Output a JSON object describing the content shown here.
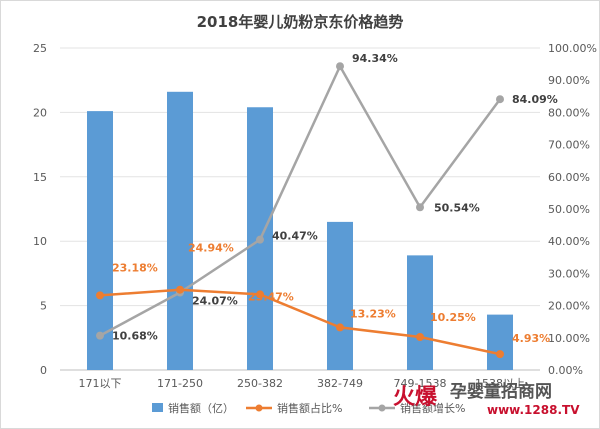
{
  "chart_data": {
    "type": "bar",
    "title": "2018年婴儿奶粉京东价格趋势",
    "categories": [
      "171以下",
      "171-250",
      "250-382",
      "382-749",
      "749-1538",
      "1538以上"
    ],
    "series": [
      {
        "name": "销售额（亿）",
        "type": "bar",
        "axis": "left",
        "color": "#5b9bd5",
        "values": [
          20.1,
          21.6,
          20.4,
          11.5,
          8.9,
          4.3
        ]
      },
      {
        "name": "销售额占比%",
        "type": "line",
        "axis": "right",
        "color": "#ed7d31",
        "values": [
          23.18,
          24.94,
          23.47,
          13.23,
          10.25,
          4.93
        ],
        "labels": [
          "23.18%",
          "24.94%",
          "23.47%",
          "13.23%",
          "10.25%",
          "4.93%"
        ]
      },
      {
        "name": "销售额增长%",
        "type": "line",
        "axis": "right",
        "color": "#a5a5a5",
        "values": [
          10.68,
          24.07,
          40.47,
          94.34,
          50.54,
          84.09
        ],
        "labels": [
          "10.68%",
          "24.07%",
          "40.47%",
          "94.34%",
          "50.54%",
          "84.09%"
        ]
      }
    ],
    "ylim": [
      0,
      25
    ],
    "y_ticks": [
      "0",
      "5",
      "10",
      "15",
      "20",
      "25"
    ],
    "y2lim": [
      0,
      100
    ],
    "y2_ticks": [
      "0.00%",
      "10.00%",
      "20.00%",
      "30.00%",
      "40.00%",
      "50.00%",
      "60.00%",
      "70.00%",
      "80.00%",
      "90.00%",
      "100.00%"
    ],
    "grid": true,
    "legend_position": "bottom"
  },
  "watermark": {
    "brand": "火爆",
    "site": "孕婴童招商网",
    "url": "www.1288.TV"
  }
}
